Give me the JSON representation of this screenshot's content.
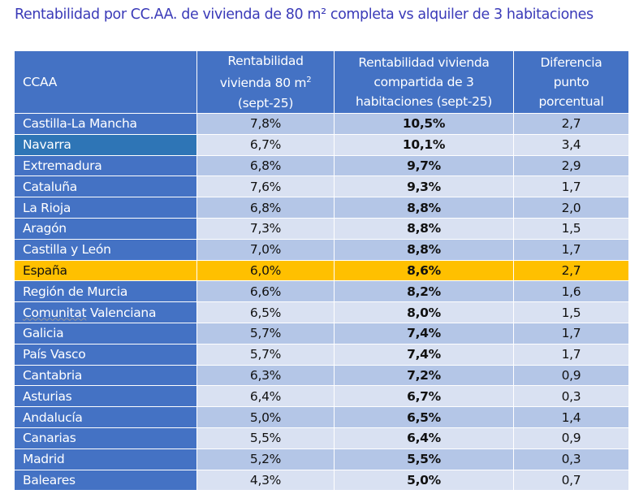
{
  "title": "Rentabilidad por CC.AA. de vivienda de 80 m² completa vs alquiler de 3 habitaciones",
  "headers": [
    "CCAA",
    "Rentabilidad vivienda 80 m² (sept-25)",
    "Rentabilidad vivienda compartida de 3 habitaciones (sept-25)",
    "Diferencia punto porcentual"
  ],
  "colors": {
    "header": "#4472C4",
    "highlight": "#FFC000",
    "row_dark": "#B4C6E7",
    "row_light": "#D9E1F2",
    "navarra_cell": "#2E75B6"
  },
  "rows": [
    [
      "Castilla-La Mancha",
      "7,8%",
      "10,5%",
      "2,7"
    ],
    [
      "Navarra",
      "6,7%",
      "10,1%",
      "3,4"
    ],
    [
      "Extremadura",
      "6,8%",
      "9,7%",
      "2,9"
    ],
    [
      "Cataluña",
      "7,6%",
      "9,3%",
      "1,7"
    ],
    [
      "La Rioja",
      "6,8%",
      "8,8%",
      "2,0"
    ],
    [
      "Aragón",
      "7,3%",
      "8,8%",
      "1,5"
    ],
    [
      "Castilla y León",
      "7,0%",
      "8,8%",
      "1,7"
    ],
    [
      "España",
      "6,0%",
      "8,6%",
      "2,7"
    ],
    [
      "Región de Murcia",
      "6,6%",
      "8,2%",
      "1,6"
    ],
    [
      "Comunitat Valenciana",
      "6,5%",
      "8,0%",
      "1,5"
    ],
    [
      "Galicia",
      "5,7%",
      "7,4%",
      "1,7"
    ],
    [
      "País Vasco",
      "5,7%",
      "7,4%",
      "1,7"
    ],
    [
      "Cantabria",
      "6,3%",
      "7,2%",
      "0,9"
    ],
    [
      "Asturias",
      "6,4%",
      "6,7%",
      "0,3"
    ],
    [
      "Andalucía",
      "5,0%",
      "6,5%",
      "1,4"
    ],
    [
      "Canarias",
      "5,5%",
      "6,4%",
      "0,9"
    ],
    [
      "Madrid",
      "5,2%",
      "5,5%",
      "0,3"
    ],
    [
      "Baleares",
      "4,3%",
      "5,0%",
      "0,7"
    ]
  ]
}
